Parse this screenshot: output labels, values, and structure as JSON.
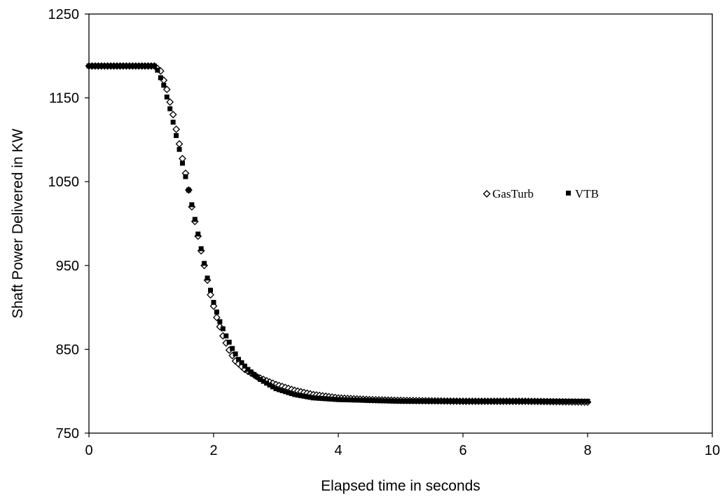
{
  "chart_data": {
    "type": "scatter",
    "title": "",
    "xlabel": "Elapsed time in seconds",
    "ylabel": "Shaft Power Delivered in KW",
    "xlim": [
      0,
      10
    ],
    "ylim": [
      750,
      1250
    ],
    "xticks": [
      0,
      2,
      4,
      6,
      8,
      10
    ],
    "yticks": [
      750,
      850,
      950,
      1050,
      1150,
      1250
    ],
    "grid": false,
    "legend": "center-right",
    "series": [
      {
        "name": "GasTurb",
        "marker": "diamond-open",
        "color": "#000000",
        "points": [
          [
            0.0,
            1188
          ],
          [
            1.05,
            1188
          ],
          [
            1.15,
            1182
          ],
          [
            1.25,
            1160
          ],
          [
            1.35,
            1130
          ],
          [
            1.45,
            1095
          ],
          [
            1.55,
            1060
          ],
          [
            1.65,
            1020
          ],
          [
            1.75,
            985
          ],
          [
            1.85,
            950
          ],
          [
            1.95,
            915
          ],
          [
            2.05,
            888
          ],
          [
            2.15,
            866
          ],
          [
            2.25,
            849
          ],
          [
            2.35,
            836
          ],
          [
            2.5,
            826
          ],
          [
            2.7,
            817
          ],
          [
            3.0,
            808
          ],
          [
            3.3,
            801
          ],
          [
            3.6,
            796
          ],
          [
            4.0,
            792
          ],
          [
            4.5,
            790
          ],
          [
            5.0,
            789
          ],
          [
            6.0,
            788
          ],
          [
            7.0,
            788
          ],
          [
            8.0,
            787
          ]
        ]
      },
      {
        "name": "VTB",
        "marker": "square-filled",
        "color": "#000000",
        "points": [
          [
            0.0,
            1188
          ],
          [
            1.05,
            1188
          ],
          [
            1.1,
            1183
          ],
          [
            1.2,
            1165
          ],
          [
            1.3,
            1137
          ],
          [
            1.4,
            1105
          ],
          [
            1.5,
            1072
          ],
          [
            1.6,
            1040
          ],
          [
            1.7,
            1005
          ],
          [
            1.8,
            970
          ],
          [
            1.9,
            935
          ],
          [
            2.0,
            906
          ],
          [
            2.1,
            883
          ],
          [
            2.2,
            866
          ],
          [
            2.3,
            851
          ],
          [
            2.4,
            838
          ],
          [
            2.55,
            826
          ],
          [
            2.75,
            814
          ],
          [
            3.0,
            803
          ],
          [
            3.3,
            796
          ],
          [
            3.6,
            792
          ],
          [
            4.0,
            790
          ],
          [
            4.5,
            789
          ],
          [
            5.0,
            788
          ],
          [
            6.0,
            788
          ],
          [
            7.0,
            788
          ],
          [
            8.0,
            788
          ]
        ]
      }
    ]
  }
}
